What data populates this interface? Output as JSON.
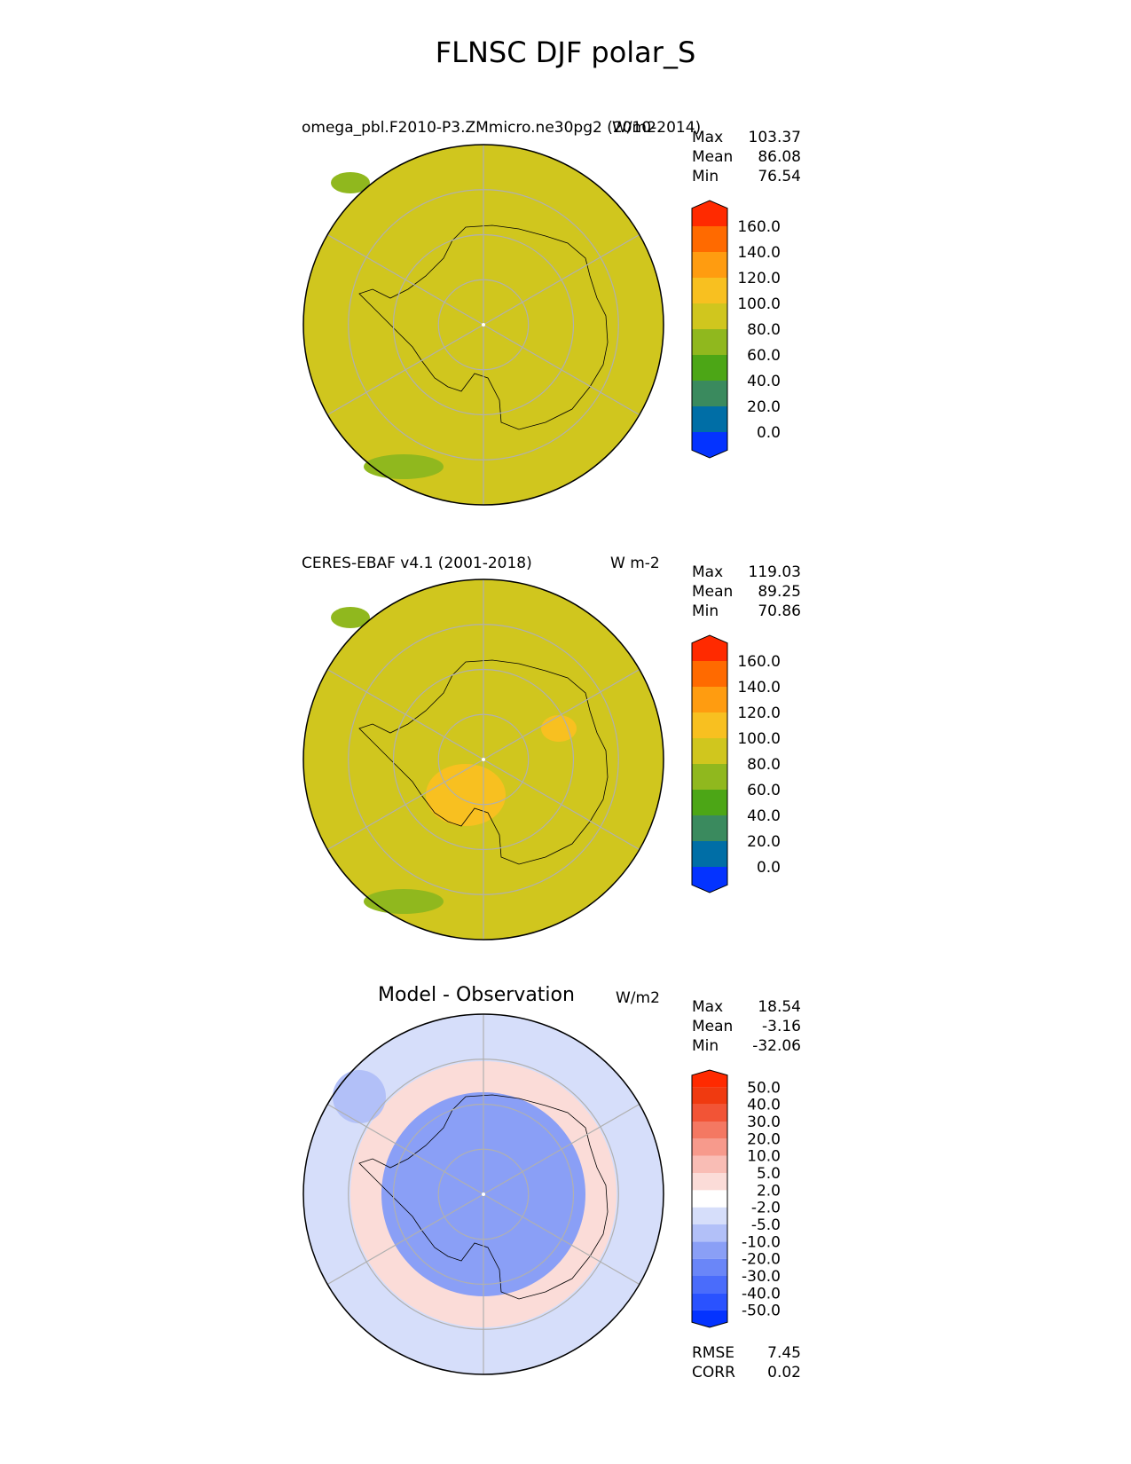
{
  "figure_title": "FLNSC DJF polar_S",
  "panels": [
    {
      "left_title": "omega_pbl.F2010-P3.ZMmicro.ne30pg2 (2010-2014)",
      "units": "W/m2",
      "stats": [
        {
          "name": "Max",
          "value": "103.37"
        },
        {
          "name": "Mean",
          "value": "86.08"
        },
        {
          "name": "Min",
          "value": "76.54"
        }
      ],
      "colorbar": {
        "levels": [
          "0.0",
          "20.0",
          "40.0",
          "60.0",
          "80.0",
          "100.0",
          "120.0",
          "140.0",
          "160.0"
        ],
        "colors": [
          "#0433ff",
          "#006ea6",
          "#3a8a5e",
          "#4ca616",
          "#90b81e",
          "#d0c61e",
          "#f8c020",
          "#ff9c10",
          "#ff6a00",
          "#ff2a00"
        ]
      },
      "field_color": "#d0c61e",
      "extra": []
    },
    {
      "left_title": "CERES-EBAF v4.1 (2001-2018)",
      "units": "W m-2",
      "stats": [
        {
          "name": "Max",
          "value": "119.03"
        },
        {
          "name": "Mean",
          "value": "89.25"
        },
        {
          "name": "Min",
          "value": "70.86"
        }
      ],
      "colorbar": {
        "levels": [
          "0.0",
          "20.0",
          "40.0",
          "60.0",
          "80.0",
          "100.0",
          "120.0",
          "140.0",
          "160.0"
        ],
        "colors": [
          "#0433ff",
          "#006ea6",
          "#3a8a5e",
          "#4ca616",
          "#90b81e",
          "#d0c61e",
          "#f8c020",
          "#ff9c10",
          "#ff6a00",
          "#ff2a00"
        ]
      },
      "field_color": "#d0c61e",
      "extra": []
    },
    {
      "left_title": "",
      "center_title": "Model - Observation",
      "units": "W/m2",
      "stats": [
        {
          "name": "Max",
          "value": "18.54"
        },
        {
          "name": "Mean",
          "value": "-3.16"
        },
        {
          "name": "Min",
          "value": "-32.06"
        }
      ],
      "colorbar": {
        "levels": [
          "-50.0",
          "-40.0",
          "-30.0",
          "-20.0",
          "-10.0",
          "-5.0",
          "-2.0",
          "2.0",
          "5.0",
          "10.0",
          "20.0",
          "30.0",
          "40.0",
          "50.0"
        ],
        "colors": [
          "#0433ff",
          "#2a52ff",
          "#4a6cfb",
          "#6a86f8",
          "#8a9ff6",
          "#b2c0f8",
          "#d6defa",
          "#ffffff",
          "#fbdcd8",
          "#f9bdb5",
          "#f79a8c",
          "#f47862",
          "#f25436",
          "#f03a10",
          "#ff2a00"
        ]
      },
      "field_color": "#d6defa",
      "extra": [
        {
          "name": "RMSE",
          "value": "7.45"
        },
        {
          "name": "CORR",
          "value": "0.02"
        }
      ]
    }
  ],
  "chart_data": [
    {
      "type": "heatmap",
      "title": "omega_pbl.F2010-P3.ZMmicro.ne30pg2 (2010-2014)",
      "units": "W/m2",
      "projection": "south polar stereographic",
      "stats": {
        "max": 103.37,
        "mean": 86.08,
        "min": 76.54
      },
      "colorbar_levels": [
        0,
        20,
        40,
        60,
        80,
        100,
        120,
        140,
        160
      ]
    },
    {
      "type": "heatmap",
      "title": "CERES-EBAF v4.1 (2001-2018)",
      "units": "W m-2",
      "projection": "south polar stereographic",
      "stats": {
        "max": 119.03,
        "mean": 89.25,
        "min": 70.86
      },
      "colorbar_levels": [
        0,
        20,
        40,
        60,
        80,
        100,
        120,
        140,
        160
      ]
    },
    {
      "type": "heatmap",
      "title": "Model - Observation",
      "units": "W/m2",
      "projection": "south polar stereographic",
      "stats": {
        "max": 18.54,
        "mean": -3.16,
        "min": -32.06,
        "rmse": 7.45,
        "corr": 0.02
      },
      "colorbar_levels": [
        -50,
        -40,
        -30,
        -20,
        -10,
        -5,
        -2,
        2,
        5,
        10,
        20,
        30,
        40,
        50
      ]
    }
  ]
}
